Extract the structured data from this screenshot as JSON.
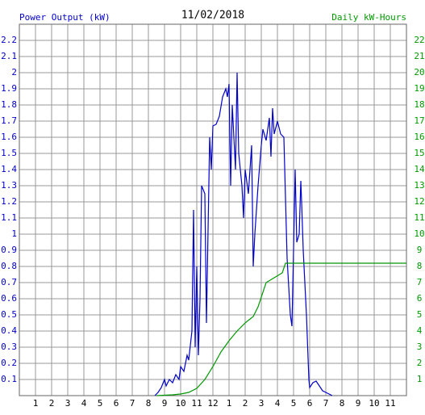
{
  "chart_data": {
    "type": "line",
    "title": "11/02/2018",
    "y_label": "Power Output (kW)",
    "y2_label": "Daily kW-Hours",
    "xlim": [
      0,
      24
    ],
    "xticks": [
      1,
      2,
      3,
      4,
      5,
      6,
      7,
      8,
      9,
      10,
      11,
      12,
      {
        "value": 13,
        "label": "1"
      },
      {
        "value": 14,
        "label": "2"
      },
      {
        "value": 15,
        "label": "3"
      },
      {
        "value": 16,
        "label": "4"
      },
      {
        "value": 17,
        "label": "5"
      },
      {
        "value": 18,
        "label": "6"
      },
      {
        "value": 19,
        "label": "7"
      },
      {
        "value": 20,
        "label": "8"
      },
      {
        "value": 21,
        "label": "9"
      },
      {
        "value": 22,
        "label": "10"
      },
      {
        "value": 23,
        "label": "11"
      }
    ],
    "ylim": [
      0,
      2.3
    ],
    "yticks": [
      0.1,
      0.2,
      0.3,
      0.4,
      0.5,
      0.6,
      0.7,
      0.8,
      0.9,
      1.0,
      1.1,
      1.2,
      1.3,
      1.4,
      1.5,
      1.6,
      1.7,
      1.8,
      1.9,
      2.0,
      2.1,
      2.2
    ],
    "y2lim": [
      0,
      23
    ],
    "y2ticks": [
      1,
      2,
      3,
      4,
      5,
      6,
      7,
      8,
      9,
      10,
      11,
      12,
      13,
      14,
      15,
      16,
      17,
      18,
      19,
      20,
      21,
      22
    ],
    "grid": true,
    "series": [
      {
        "name": "Power Output (kW)",
        "color": "#0000cc",
        "x": [
          8.4,
          8.6,
          8.8,
          9.0,
          9.1,
          9.3,
          9.5,
          9.7,
          9.9,
          10.0,
          10.2,
          10.4,
          10.5,
          10.7,
          10.8,
          10.9,
          11.0,
          11.1,
          11.2,
          11.3,
          11.5,
          11.6,
          11.8,
          11.9,
          12.0,
          12.2,
          12.4,
          12.6,
          12.8,
          12.9,
          13.0,
          13.1,
          13.2,
          13.4,
          13.5,
          13.6,
          13.8,
          13.9,
          14.0,
          14.2,
          14.4,
          14.5,
          14.6,
          14.8,
          15.0,
          15.1,
          15.3,
          15.5,
          15.6,
          15.7,
          15.8,
          16.0,
          16.2,
          16.4,
          16.6,
          16.8,
          16.9,
          17.0,
          17.1,
          17.2,
          17.35,
          17.45,
          17.5,
          17.6,
          17.8,
          17.95,
          18.0,
          18.2,
          18.4,
          18.6,
          18.8,
          19.0,
          19.2,
          19.4
        ],
        "values": [
          0,
          0.02,
          0.05,
          0.1,
          0.06,
          0.1,
          0.08,
          0.13,
          0.1,
          0.18,
          0.15,
          0.25,
          0.22,
          0.4,
          1.15,
          0.3,
          0.8,
          0.25,
          0.6,
          1.3,
          1.25,
          0.45,
          1.6,
          1.4,
          1.67,
          1.68,
          1.73,
          1.85,
          1.9,
          1.85,
          1.93,
          1.3,
          1.8,
          1.4,
          2.0,
          1.5,
          1.3,
          1.1,
          1.4,
          1.25,
          1.55,
          0.8,
          1.0,
          1.3,
          1.55,
          1.65,
          1.58,
          1.72,
          1.48,
          1.78,
          1.62,
          1.7,
          1.62,
          1.6,
          0.85,
          0.5,
          0.43,
          0.9,
          1.4,
          0.95,
          1.0,
          1.33,
          1.2,
          0.9,
          0.5,
          0.1,
          0.05,
          0.08,
          0.09,
          0.06,
          0.03,
          0.02,
          0.01,
          0
        ]
      },
      {
        "name": "Daily kW-Hours",
        "color": "#009900",
        "axis": "y2",
        "x": [
          8.5,
          9.5,
          10,
          10.5,
          11,
          11.5,
          12,
          12.5,
          13,
          13.5,
          14,
          14.5,
          14.8,
          15.3,
          15.8,
          16.3,
          16.5,
          24
        ],
        "values": [
          0,
          0.05,
          0.1,
          0.2,
          0.45,
          1.0,
          1.8,
          2.7,
          3.4,
          4.0,
          4.5,
          4.9,
          5.5,
          7.0,
          7.3,
          7.6,
          8.2,
          8.2
        ]
      }
    ]
  }
}
